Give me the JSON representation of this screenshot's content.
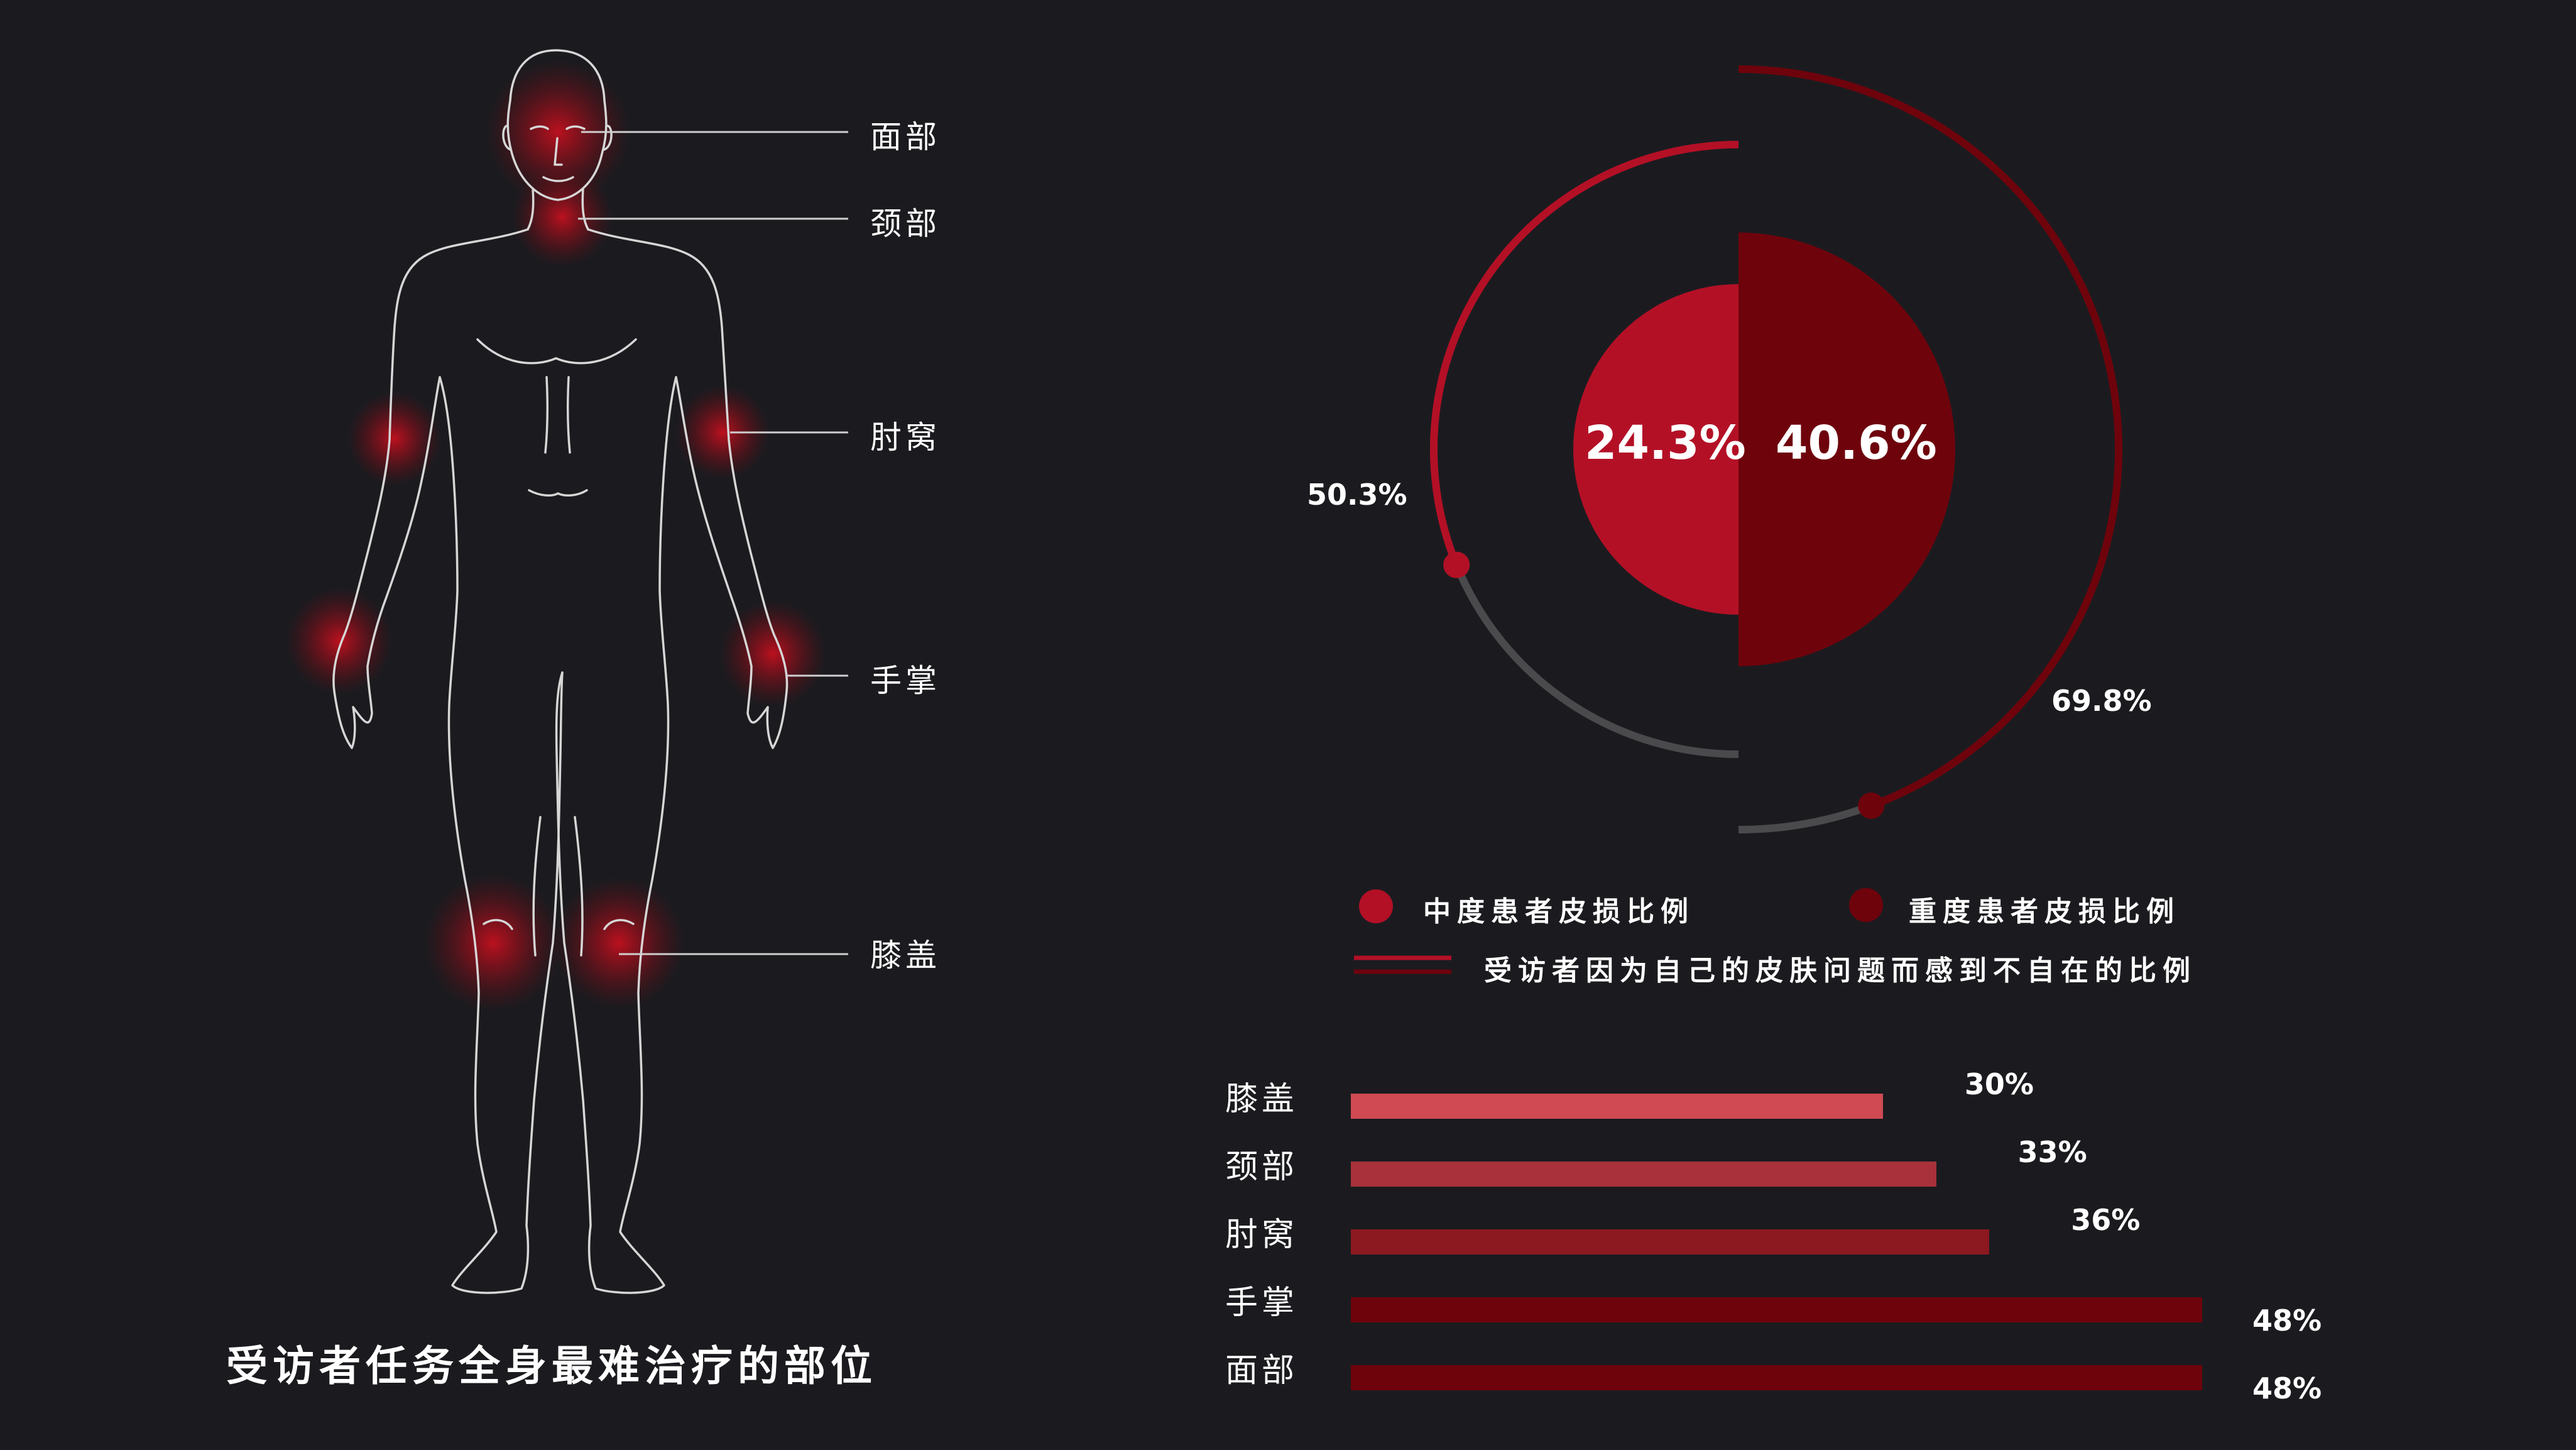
{
  "colors": {
    "background": "#1b1b1f",
    "moderate": "#b31026",
    "severe": "#6e030c",
    "track": "#4a4a4d",
    "glow": "#c4101f",
    "figure_stroke": "#d9d9d9"
  },
  "body_map": {
    "title": "受访者任务全身最难治疗的部位",
    "callouts": [
      {
        "key": "face",
        "label": "面部"
      },
      {
        "key": "neck",
        "label": "颈部"
      },
      {
        "key": "elbow",
        "label": "肘窝"
      },
      {
        "key": "palm",
        "label": "手掌"
      },
      {
        "key": "knee",
        "label": "膝盖"
      }
    ]
  },
  "legend": {
    "moderate": "中度患者皮损比例",
    "severe": "重度患者皮损比例",
    "ring": "受访者因为自己的皮肤问题而感到不自在的比例"
  },
  "chart_data": [
    {
      "type": "pie",
      "series": [
        {
          "name": "中度患者皮损比例",
          "inner_value": 24.3,
          "inner_label": "24.3%",
          "ring_value": 50.3,
          "ring_label": "50.3%"
        },
        {
          "name": "重度患者皮损比例",
          "inner_value": 40.6,
          "inner_label": "40.6%",
          "ring_value": 69.8,
          "ring_label": "69.8%"
        }
      ]
    },
    {
      "type": "bar",
      "orientation": "horizontal",
      "categories": [
        "膝盖",
        "颈部",
        "肘窝",
        "手掌",
        "面部"
      ],
      "values": [
        30,
        33,
        36,
        48,
        48
      ],
      "value_labels": [
        "30%",
        "33%",
        "36%",
        "48%",
        "48%"
      ],
      "colors": [
        "#cf4a52",
        "#a8313b",
        "#8c1820",
        "#6e030c",
        "#6e030c"
      ],
      "xlim": [
        0,
        48
      ]
    }
  ]
}
